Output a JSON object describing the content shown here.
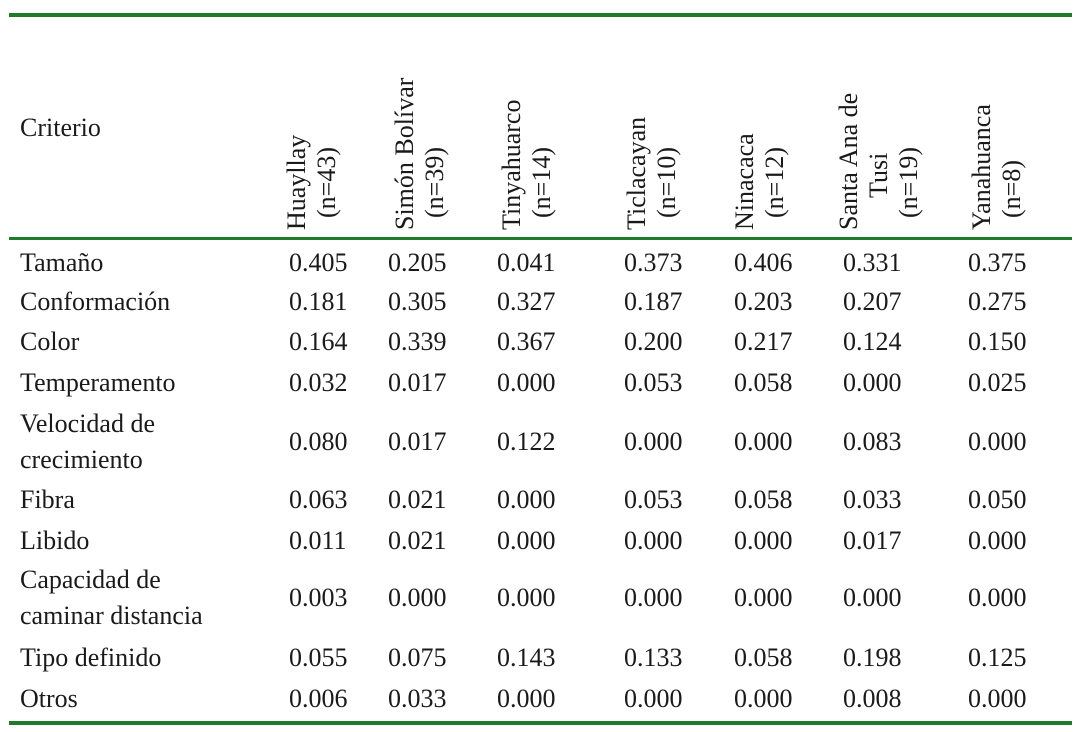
{
  "table": {
    "header_label": "Criterio",
    "columns": [
      {
        "name": "Huayllay",
        "count": "(n=43)"
      },
      {
        "name": "Simón Bolívar",
        "count": "(n=39)"
      },
      {
        "name": "Tinyahuarco",
        "count": "(n=14)"
      },
      {
        "name": "Ticlacayan",
        "count": "(n=10)"
      },
      {
        "name": "Ninacaca",
        "count": "(n=12)"
      },
      {
        "name": "Santa Ana de",
        "name2": "Tusi",
        "count": "(n=19)"
      },
      {
        "name": "Yanahuanca",
        "count": "(n=8)"
      }
    ],
    "rows": [
      {
        "label": [
          "Tamaño"
        ],
        "values": [
          "0.405",
          "0.205",
          "0.041",
          "0.373",
          "0.406",
          "0.331",
          "0.375"
        ]
      },
      {
        "label": [
          "Conformación"
        ],
        "values": [
          "0.181",
          "0.305",
          "0.327",
          "0.187",
          "0.203",
          "0.207",
          "0.275"
        ]
      },
      {
        "label": [
          "Color"
        ],
        "values": [
          "0.164",
          "0.339",
          "0.367",
          "0.200",
          "0.217",
          "0.124",
          "0.150"
        ]
      },
      {
        "label": [
          "Temperamento"
        ],
        "values": [
          "0.032",
          "0.017",
          "0.000",
          "0.053",
          "0.058",
          "0.000",
          "0.025"
        ]
      },
      {
        "label": [
          "Velocidad de",
          "crecimiento"
        ],
        "values": [
          "0.080",
          "0.017",
          "0.122",
          "0.000",
          "0.000",
          "0.083",
          "0.000"
        ]
      },
      {
        "label": [
          "Fibra"
        ],
        "values": [
          "0.063",
          "0.021",
          "0.000",
          "0.053",
          "0.058",
          "0.033",
          "0.050"
        ]
      },
      {
        "label": [
          "Libido"
        ],
        "values": [
          "0.011",
          "0.021",
          "0.000",
          "0.000",
          "0.000",
          "0.017",
          "0.000"
        ]
      },
      {
        "label": [
          "Capacidad de",
          "caminar distancia"
        ],
        "values": [
          "0.003",
          "0.000",
          "0.000",
          "0.000",
          "0.000",
          "0.000",
          "0.000"
        ]
      },
      {
        "label": [
          "Tipo definido"
        ],
        "values": [
          "0.055",
          "0.075",
          "0.143",
          "0.133",
          "0.058",
          "0.198",
          "0.125"
        ]
      },
      {
        "label": [
          "Otros"
        ],
        "values": [
          "0.006",
          "0.033",
          "0.000",
          "0.000",
          "0.000",
          "0.008",
          "0.000"
        ]
      }
    ]
  },
  "colors": {
    "rule": "#1e7b2a",
    "text": "#1a1a1a",
    "background": "#ffffff"
  }
}
